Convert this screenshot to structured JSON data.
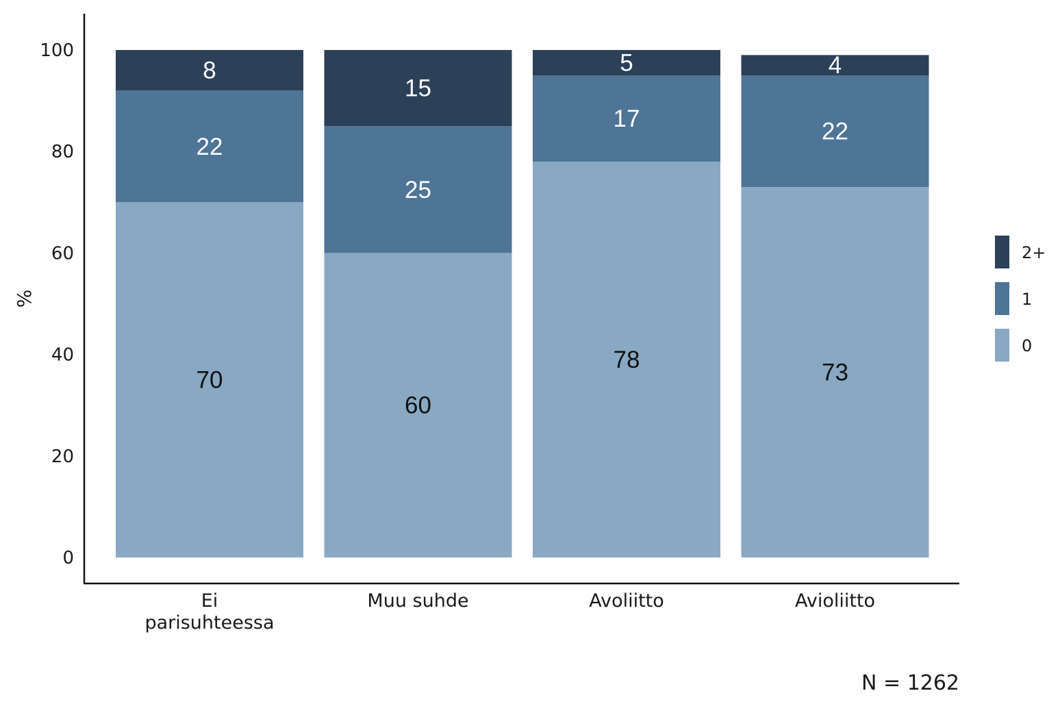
{
  "chart_data": {
    "type": "bar",
    "stacked": true,
    "categories": [
      "Ei parisuhteessa",
      "Muu suhde",
      "Avoliitto",
      "Avioliitto"
    ],
    "category_lines": [
      [
        "Ei",
        "parisuhteessa"
      ],
      [
        "Muu suhde"
      ],
      [
        "Avoliitto"
      ],
      [
        "Avioliitto"
      ]
    ],
    "series": [
      {
        "name": "0",
        "values": [
          70,
          60,
          78,
          73
        ],
        "color": "#89a8c3",
        "label_color": "#111111"
      },
      {
        "name": "1",
        "values": [
          22,
          25,
          17,
          22
        ],
        "color": "#4e7496",
        "label_color": "#ffffff"
      },
      {
        "name": "2+",
        "values": [
          8,
          15,
          5,
          4
        ],
        "color": "#2c4157",
        "label_color": "#ffffff"
      }
    ],
    "legend_order": [
      "2+",
      "1",
      "0"
    ],
    "legend_position": "right",
    "ylabel": "%",
    "yticks": [
      0,
      20,
      40,
      60,
      80,
      100
    ],
    "ylim": [
      0,
      105
    ],
    "grid": false,
    "note": "N = 1262"
  }
}
